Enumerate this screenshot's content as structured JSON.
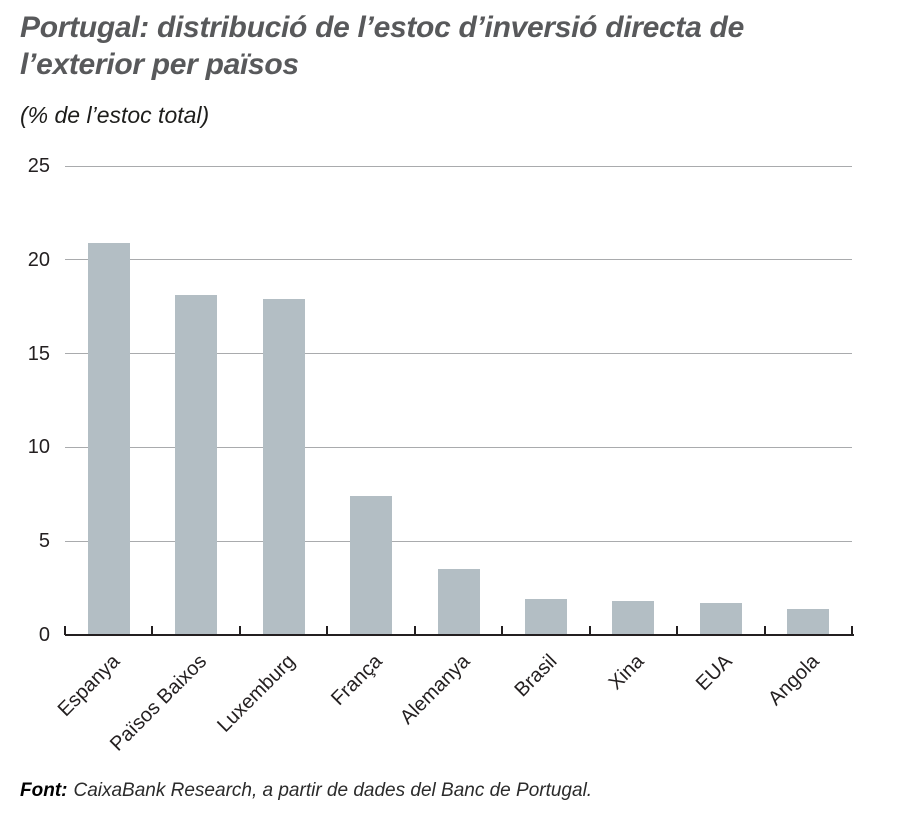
{
  "chart": {
    "title": "Portugal: distribució de l’estoc d’inversió directa de l’exterior per països",
    "subtitle": "(% de l’estoc total)"
  },
  "chart_data": {
    "type": "bar",
    "title": "Portugal: distribució de l’estoc d’inversió directa de l’exterior per països",
    "subtitle": "(% de l’estoc total)",
    "categories": [
      "Espanya",
      "Països Baixos",
      "Luxemburg",
      "França",
      "Alemanya",
      "Brasil",
      "Xina",
      "EUA",
      "Angola"
    ],
    "values": [
      20.9,
      18.1,
      17.9,
      7.4,
      3.5,
      1.9,
      1.8,
      1.7,
      1.4
    ],
    "xlabel": "",
    "ylabel": "% de l’estoc total",
    "ylim": [
      0,
      25
    ],
    "yticks": [
      0,
      5,
      10,
      15,
      20,
      25
    ],
    "grid": true,
    "legend": false,
    "bar_color": "#b3bec4"
  },
  "footer": {
    "label": "Font:",
    "text": "CaixaBank Research, a partir de dades del Banc de Portugal."
  },
  "colors": {
    "title": "#58595b",
    "bar": "#b3bec4",
    "gridline": "#a9abad",
    "axis": "#231f20",
    "text": "#231f20"
  }
}
